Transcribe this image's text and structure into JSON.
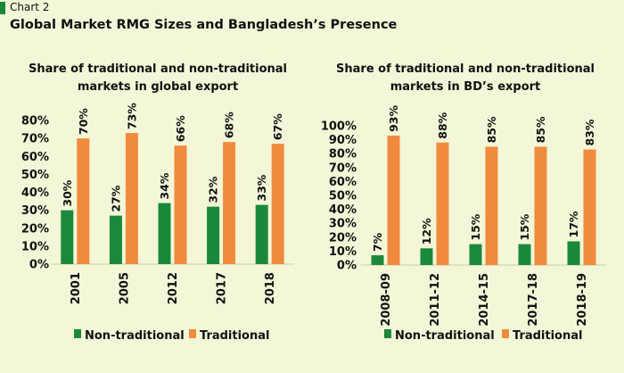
{
  "header": {
    "tag": "Chart 2",
    "title": "Global Market RMG Sizes and Bangladesh’s Presence"
  },
  "colors": {
    "non_traditional": "#1a8a3a",
    "traditional": "#f08a3c",
    "background": "#f4f7d7",
    "tag_bar": "#1a8a3a"
  },
  "chart_data": [
    {
      "type": "bar",
      "title_lines": [
        "Share of traditional and non-traditional",
        "markets in global export"
      ],
      "categories": [
        "2001",
        "2005",
        "2012",
        "2017",
        "2018"
      ],
      "series": [
        {
          "name": "Non-traditional",
          "values": [
            30,
            27,
            34,
            32,
            33
          ],
          "labels": [
            "30%",
            "27%",
            "34%",
            "32%",
            "33%"
          ]
        },
        {
          "name": "Traditional",
          "values": [
            70,
            73,
            66,
            68,
            67
          ],
          "labels": [
            "70%",
            "73%",
            "66%",
            "68%",
            "67%"
          ]
        }
      ],
      "ylim": [
        0,
        80
      ],
      "yticks": [
        "0%",
        "10%",
        "20%",
        "30%",
        "40%",
        "50%",
        "60%",
        "70%",
        "80%"
      ],
      "legend": "bottom",
      "grid": false
    },
    {
      "type": "bar",
      "title_lines": [
        "Share of traditional and non-traditional",
        "markets in BD’s export"
      ],
      "categories": [
        "2008-09",
        "2011-12",
        "2014-15",
        "2017-18",
        "2018-19"
      ],
      "series": [
        {
          "name": "Non-traditional",
          "values": [
            7,
            12,
            15,
            15,
            17
          ],
          "labels": [
            "7%",
            "12%",
            "15%",
            "15%",
            "17%"
          ]
        },
        {
          "name": "Traditional",
          "values": [
            93,
            88,
            85,
            85,
            83
          ],
          "labels": [
            "93%",
            "88%",
            "85%",
            "85%",
            "83%"
          ]
        }
      ],
      "ylim": [
        0,
        100
      ],
      "yticks": [
        "0%",
        "10%",
        "20%",
        "30%",
        "40%",
        "50%",
        "60%",
        "70%",
        "80%",
        "90%",
        "100%"
      ],
      "legend": "bottom",
      "grid": false
    }
  ]
}
